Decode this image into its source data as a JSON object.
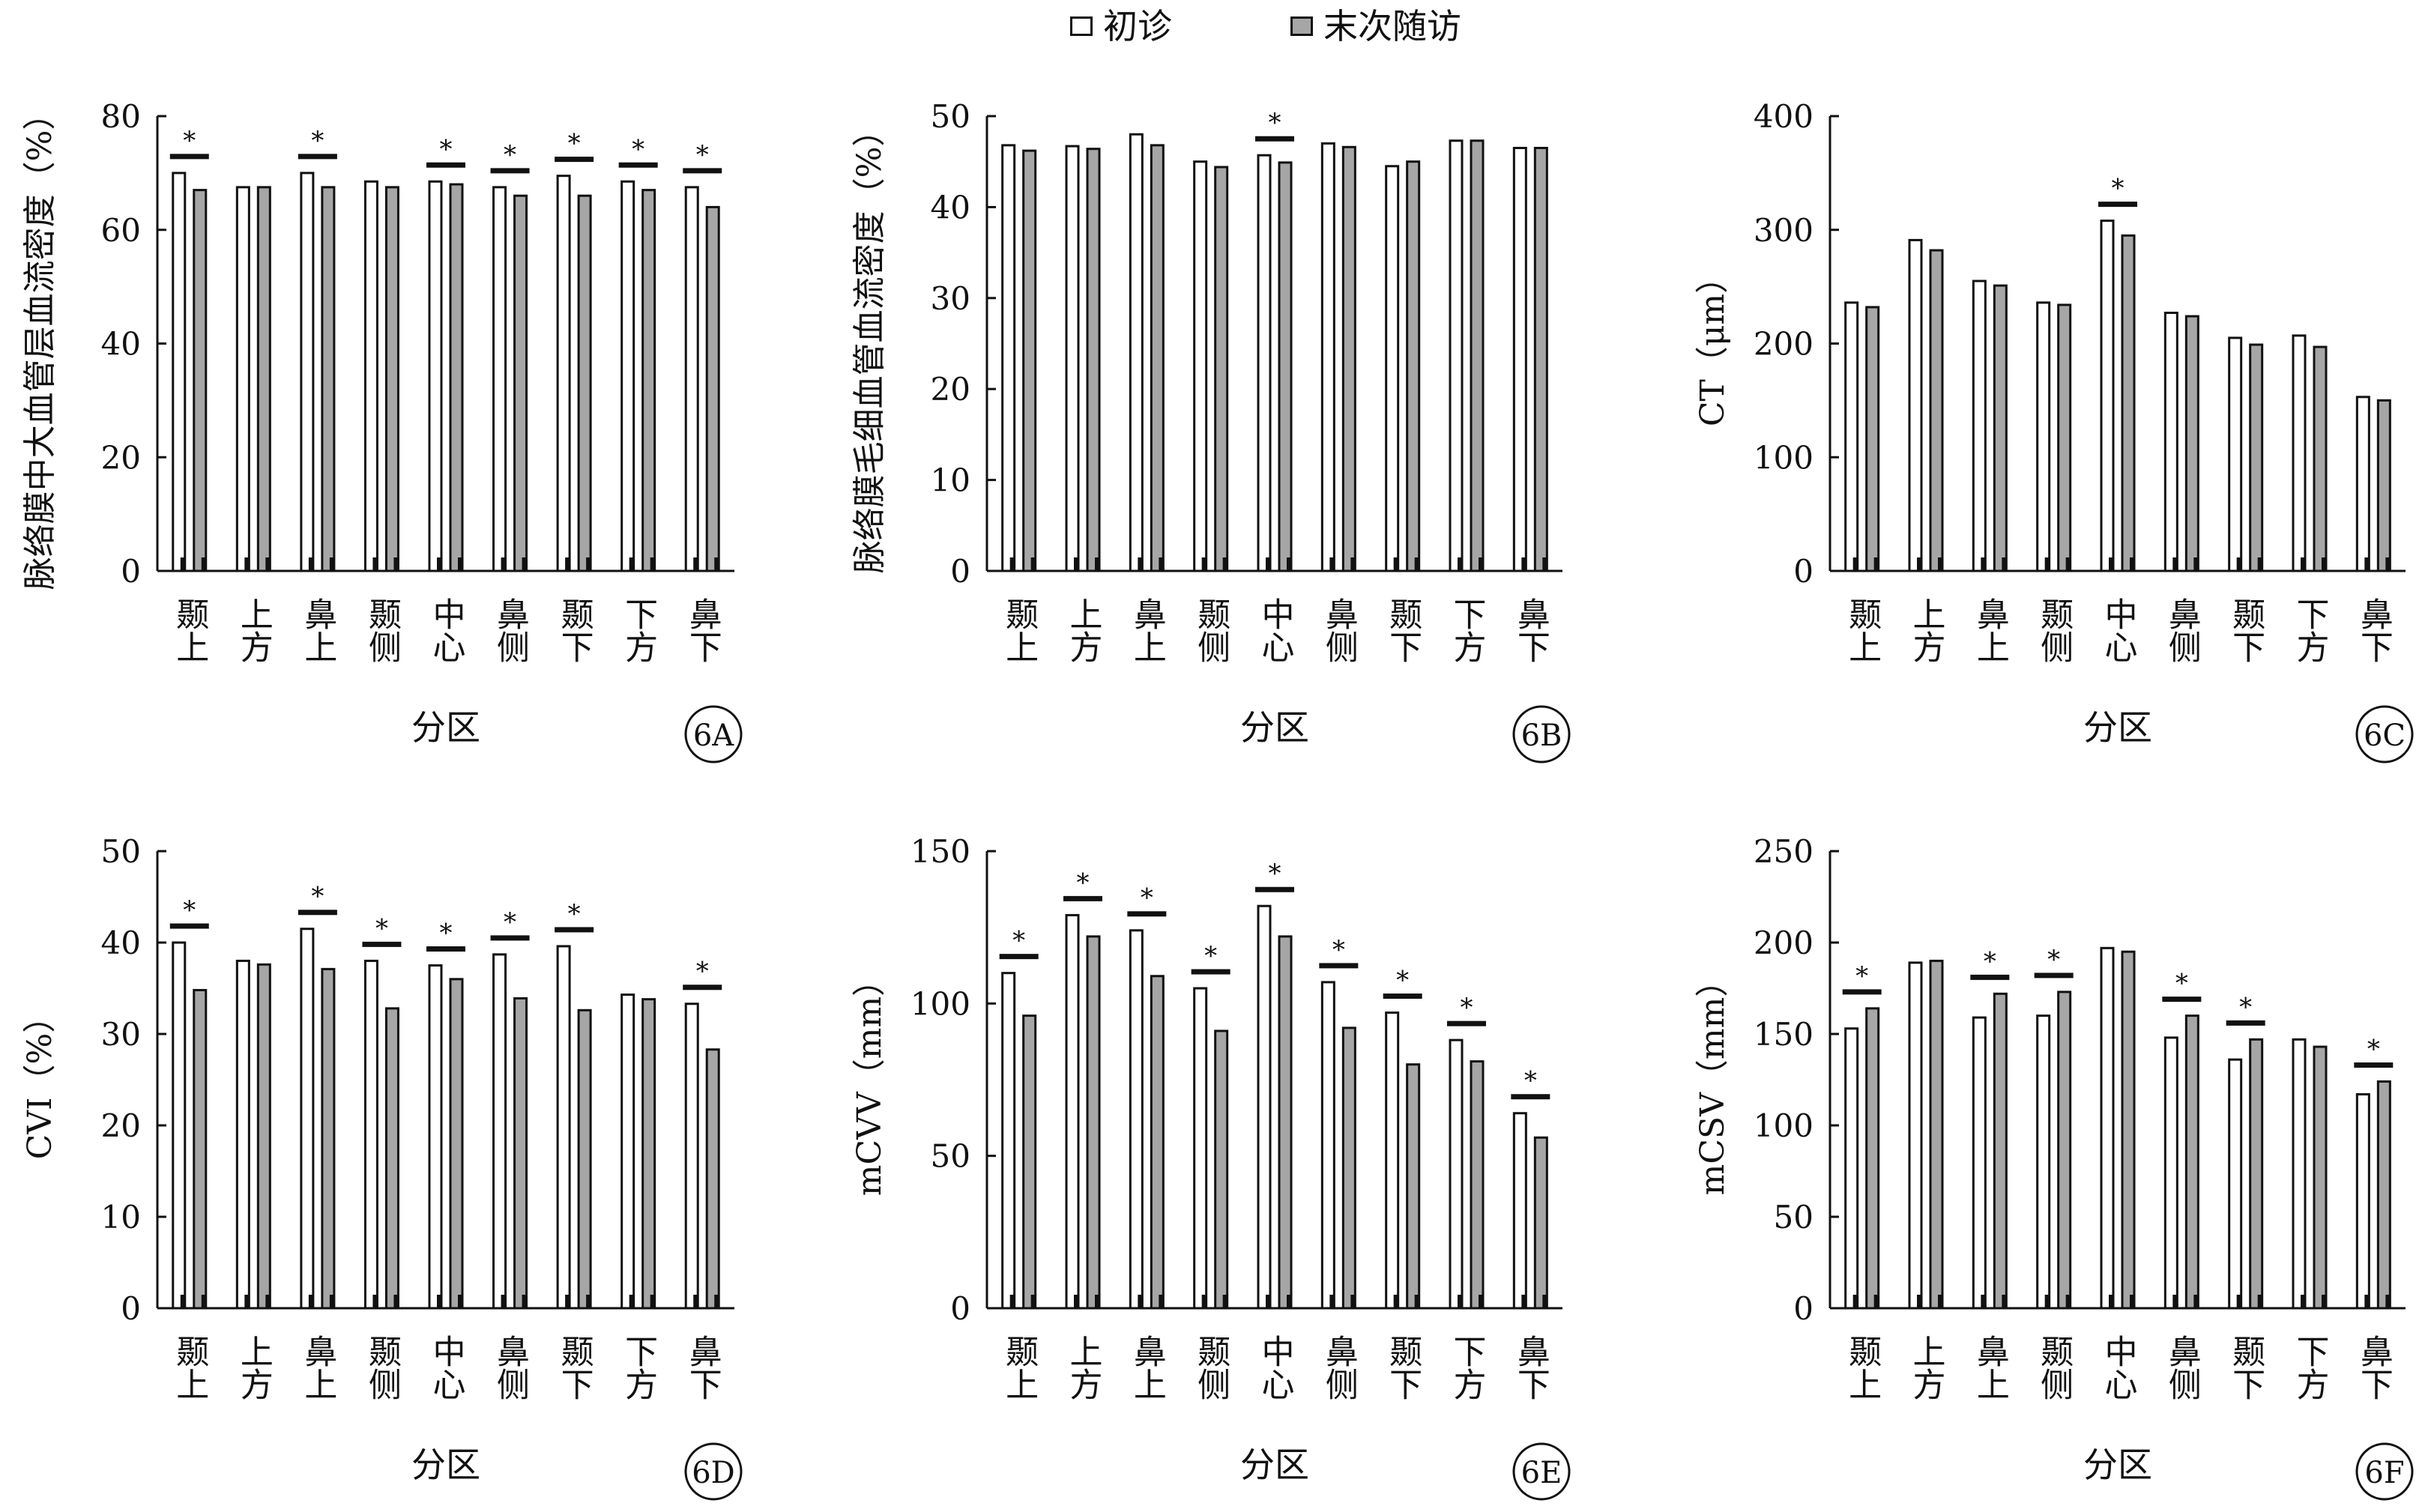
{
  "legend": {
    "initial_label": "初诊",
    "final_label": "末次随访",
    "initial_color": "#ffffff",
    "final_color": "#a6a6a6"
  },
  "chart_data": [
    {
      "type": "bar",
      "panel": "6A",
      "ylabel": "脉络膜中大血管层血流密度（%）",
      "xlabel": "分区",
      "ylim": [
        0,
        80
      ],
      "yticks": [
        0,
        20,
        40,
        60,
        80
      ],
      "categories": [
        "颞上",
        "上方",
        "鼻上",
        "颞侧",
        "中心",
        "鼻侧",
        "颞下",
        "下方",
        "鼻下"
      ],
      "series": [
        {
          "name": "初诊",
          "values": [
            70,
            67.5,
            70,
            68.5,
            68.5,
            67.5,
            69.5,
            68.5,
            67.5
          ]
        },
        {
          "name": "末次随访",
          "values": [
            67,
            67.5,
            67.5,
            67.5,
            68,
            66,
            66,
            67,
            64
          ]
        }
      ],
      "significant": [
        true,
        false,
        true,
        false,
        true,
        true,
        true,
        true,
        true
      ],
      "significance_label": "*"
    },
    {
      "type": "bar",
      "panel": "6B",
      "ylabel": "脉络膜毛细血管血流密度（%）",
      "xlabel": "分区",
      "ylim": [
        0,
        50
      ],
      "yticks": [
        0,
        10,
        20,
        30,
        40,
        50
      ],
      "categories": [
        "颞上",
        "上方",
        "鼻上",
        "颞侧",
        "中心",
        "鼻侧",
        "颞下",
        "下方",
        "鼻下"
      ],
      "series": [
        {
          "name": "初诊",
          "values": [
            46.8,
            46.7,
            48,
            45,
            45.7,
            47,
            44.5,
            47.3,
            46.5
          ]
        },
        {
          "name": "末次随访",
          "values": [
            46.2,
            46.4,
            46.8,
            44.4,
            44.9,
            46.6,
            45,
            47.3,
            46.5
          ]
        }
      ],
      "significant": [
        false,
        false,
        false,
        false,
        true,
        false,
        false,
        false,
        false
      ],
      "significance_label": "*"
    },
    {
      "type": "bar",
      "panel": "6C",
      "ylabel": "CT（μm）",
      "xlabel": "分区",
      "ylim": [
        0,
        400
      ],
      "yticks": [
        0,
        100,
        200,
        300,
        400
      ],
      "categories": [
        "颞上",
        "上方",
        "鼻上",
        "颞侧",
        "中心",
        "鼻侧",
        "颞下",
        "下方",
        "鼻下"
      ],
      "series": [
        {
          "name": "初诊",
          "values": [
            236,
            291,
            255,
            236,
            308,
            227,
            205,
            207,
            153
          ]
        },
        {
          "name": "末次随访",
          "values": [
            232,
            282,
            251,
            234,
            295,
            224,
            199,
            197,
            150
          ]
        }
      ],
      "significant": [
        false,
        false,
        false,
        false,
        true,
        false,
        false,
        false,
        false
      ],
      "significance_label": "*"
    },
    {
      "type": "bar",
      "panel": "6D",
      "ylabel": "CVI（%）",
      "xlabel": "分区",
      "ylim": [
        0,
        50
      ],
      "yticks": [
        0,
        10,
        20,
        30,
        40,
        50
      ],
      "categories": [
        "颞上",
        "上方",
        "鼻上",
        "颞侧",
        "中心",
        "鼻侧",
        "颞下",
        "下方",
        "鼻下"
      ],
      "series": [
        {
          "name": "初诊",
          "values": [
            40,
            38,
            41.5,
            38,
            37.5,
            38.7,
            39.6,
            34.3,
            33.3
          ]
        },
        {
          "name": "末次随访",
          "values": [
            34.8,
            37.6,
            37.1,
            32.8,
            36,
            33.9,
            32.6,
            33.8,
            28.3
          ]
        }
      ],
      "significant": [
        true,
        false,
        true,
        true,
        true,
        true,
        true,
        false,
        true
      ],
      "significance_label": "*"
    },
    {
      "type": "bar",
      "panel": "6E",
      "ylabel": "mCVV（mm）",
      "xlabel": "分区",
      "ylim": [
        0,
        150
      ],
      "yticks": [
        0,
        50,
        100,
        150
      ],
      "categories": [
        "颞上",
        "上方",
        "鼻上",
        "颞侧",
        "中心",
        "鼻侧",
        "颞下",
        "下方",
        "鼻下"
      ],
      "series": [
        {
          "name": "初诊",
          "values": [
            110,
            129,
            124,
            105,
            132,
            107,
            97,
            88,
            64
          ]
        },
        {
          "name": "末次随访",
          "values": [
            96,
            122,
            109,
            91,
            122,
            92,
            80,
            81,
            56
          ]
        }
      ],
      "significant": [
        true,
        true,
        true,
        true,
        true,
        true,
        true,
        true,
        true
      ],
      "significance_label": "*"
    },
    {
      "type": "bar",
      "panel": "6F",
      "ylabel": "mCSV（mm）",
      "xlabel": "分区",
      "ylim": [
        0,
        250
      ],
      "yticks": [
        0,
        50,
        100,
        150,
        200,
        250
      ],
      "categories": [
        "颞上",
        "上方",
        "鼻上",
        "颞侧",
        "中心",
        "鼻侧",
        "颞下",
        "下方",
        "鼻下"
      ],
      "series": [
        {
          "name": "初诊",
          "values": [
            153,
            189,
            159,
            160,
            197,
            148,
            136,
            147,
            117
          ]
        },
        {
          "name": "末次随访",
          "values": [
            164,
            190,
            172,
            173,
            195,
            160,
            147,
            143,
            124
          ]
        }
      ],
      "significant": [
        true,
        false,
        true,
        true,
        false,
        true,
        true,
        false,
        true
      ],
      "significance_label": "*"
    }
  ]
}
